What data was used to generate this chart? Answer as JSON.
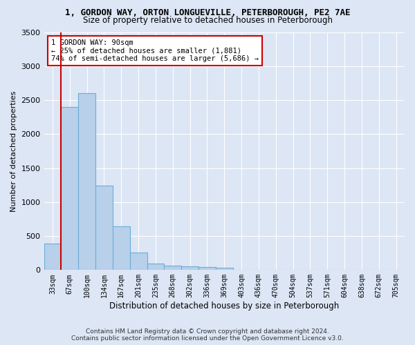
{
  "title": "1, GORDON WAY, ORTON LONGUEVILLE, PETERBOROUGH, PE2 7AE",
  "subtitle": "Size of property relative to detached houses in Peterborough",
  "xlabel": "Distribution of detached houses by size in Peterborough",
  "ylabel": "Number of detached properties",
  "categories": [
    "33sqm",
    "67sqm",
    "100sqm",
    "134sqm",
    "167sqm",
    "201sqm",
    "235sqm",
    "268sqm",
    "302sqm",
    "336sqm",
    "369sqm",
    "403sqm",
    "436sqm",
    "470sqm",
    "504sqm",
    "537sqm",
    "571sqm",
    "604sqm",
    "638sqm",
    "672sqm",
    "705sqm"
  ],
  "values": [
    390,
    2400,
    2600,
    1240,
    640,
    260,
    90,
    60,
    55,
    40,
    30,
    0,
    0,
    0,
    0,
    0,
    0,
    0,
    0,
    0,
    0
  ],
  "bar_color": "#b8d0ea",
  "bar_edge_color": "#6badd6",
  "vline_x": 0.5,
  "vline_color": "#cc0000",
  "annotation_text": "1 GORDON WAY: 90sqm\n← 25% of detached houses are smaller (1,881)\n74% of semi-detached houses are larger (5,686) →",
  "annotation_box_color": "#ffffff",
  "annotation_box_edge": "#cc0000",
  "ylim": [
    0,
    3500
  ],
  "yticks": [
    0,
    500,
    1000,
    1500,
    2000,
    2500,
    3000,
    3500
  ],
  "footer": "Contains HM Land Registry data © Crown copyright and database right 2024.\nContains public sector information licensed under the Open Government Licence v3.0.",
  "background_color": "#dce6f5",
  "plot_background": "#dce6f5",
  "grid_color": "#ffffff"
}
